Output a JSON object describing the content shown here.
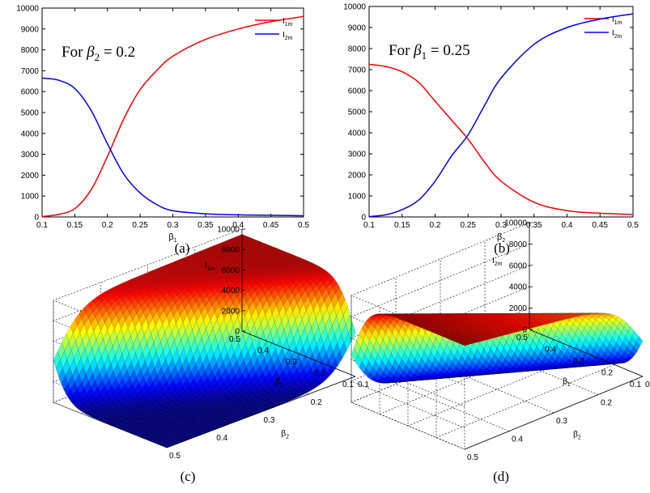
{
  "figure": {
    "panel_labels": [
      "(a)",
      "(b)",
      "(c)",
      "(d)"
    ]
  },
  "chart_data": [
    {
      "panel": "(a)",
      "type": "line",
      "annotation": {
        "prefix": "For ",
        "var": "β",
        "sub": "2",
        "suffix": " = 0.2"
      },
      "xlabel": {
        "base": "β",
        "sub": "1"
      },
      "xlim": [
        0.1,
        0.5
      ],
      "ylim": [
        0,
        10000
      ],
      "xticks": [
        0.1,
        0.15,
        0.2,
        0.25,
        0.3,
        0.35,
        0.4,
        0.45,
        0.5
      ],
      "yticks": [
        0,
        1000,
        2000,
        3000,
        4000,
        5000,
        6000,
        7000,
        8000,
        9000,
        10000
      ],
      "legend_position": "top-right",
      "x": [
        0.1,
        0.125,
        0.15,
        0.175,
        0.2,
        0.225,
        0.25,
        0.275,
        0.3,
        0.35,
        0.4,
        0.45,
        0.5
      ],
      "series": [
        {
          "name": "I",
          "sub": "1m",
          "color": "#ff0000",
          "values": [
            20,
            120,
            400,
            1300,
            2900,
            4700,
            6100,
            7000,
            7700,
            8500,
            9000,
            9350,
            9600
          ]
        },
        {
          "name": "I",
          "sub": "2m",
          "color": "#0000ff",
          "values": [
            6650,
            6550,
            6150,
            5100,
            3500,
            2050,
            1150,
            600,
            300,
            150,
            100,
            80,
            60
          ]
        }
      ]
    },
    {
      "panel": "(b)",
      "type": "line",
      "annotation": {
        "prefix": "For ",
        "var": "β",
        "sub": "1",
        "suffix": " = 0.25"
      },
      "xlabel": {
        "base": "β",
        "sub": "2"
      },
      "xlim": [
        0.1,
        0.5
      ],
      "ylim": [
        0,
        10000
      ],
      "xticks": [
        0.1,
        0.15,
        0.2,
        0.25,
        0.3,
        0.35,
        0.4,
        0.45,
        0.5
      ],
      "yticks": [
        0,
        1000,
        2000,
        3000,
        4000,
        5000,
        6000,
        7000,
        8000,
        9000,
        10000
      ],
      "legend_position": "top-right",
      "x": [
        0.1,
        0.125,
        0.15,
        0.175,
        0.2,
        0.225,
        0.25,
        0.275,
        0.3,
        0.35,
        0.4,
        0.45,
        0.5
      ],
      "series": [
        {
          "name": "I",
          "sub": "1m",
          "color": "#ff0000",
          "values": [
            7250,
            7150,
            6900,
            6400,
            5500,
            4600,
            3700,
            2600,
            1700,
            700,
            300,
            180,
            120
          ]
        },
        {
          "name": "I",
          "sub": "2m",
          "color": "#0000ff",
          "values": [
            20,
            100,
            350,
            800,
            1700,
            2900,
            3900,
            5300,
            6600,
            8200,
            9000,
            9400,
            9650
          ]
        }
      ]
    },
    {
      "panel": "(c)",
      "type": "surface",
      "zlabel": {
        "base": "I",
        "sub": "1m"
      },
      "xlabel": {
        "base": "β",
        "sub": "2"
      },
      "ylabel": {
        "base": "β",
        "sub": "1"
      },
      "zticks": [
        "0",
        "2000",
        "4000",
        "6000",
        "8000",
        "10000"
      ],
      "xticks": [
        "0.1",
        "0.2",
        "0.3",
        "0.4",
        "0.5"
      ],
      "yticks": [
        "0.5",
        "0.4",
        "0.3",
        "0.2",
        "0.1"
      ],
      "zlim": [
        0,
        10000
      ],
      "colormap": "jet"
    },
    {
      "panel": "(d)",
      "type": "surface",
      "zlabel": {
        "base": "I",
        "sub": "2m"
      },
      "xlabel": {
        "base": "β",
        "sub": "2"
      },
      "ylabel": {
        "base": "β",
        "sub": "1"
      },
      "zticks": [
        "0",
        "2000",
        "4000",
        "6000",
        "8000",
        "10000"
      ],
      "xticks": [
        "0.1",
        "0.2",
        "0.3",
        "0.4",
        "0.5"
      ],
      "yticks": [
        "0.5",
        "0.4",
        "0.3",
        "0.2",
        "0.1"
      ],
      "zlim": [
        0,
        10000
      ],
      "colormap": "jet"
    }
  ]
}
